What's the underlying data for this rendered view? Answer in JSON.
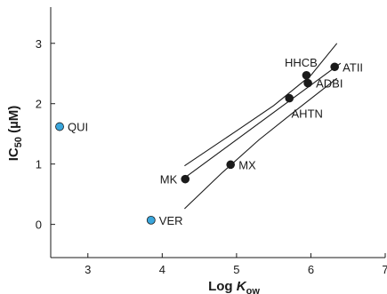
{
  "chart_data": {
    "type": "scatter",
    "xlim": [
      2.5,
      7
    ],
    "ylim": [
      -0.55,
      3.6
    ],
    "x_ticks": [
      "3",
      "4",
      "5",
      "6",
      "7"
    ],
    "y_ticks": [
      "0",
      "1",
      "2",
      "3"
    ],
    "xlabel": {
      "main": "Log ",
      "italic": "K",
      "sub": "ow"
    },
    "ylabel": {
      "main": "IC",
      "sub": "50",
      "unit": " (µM)"
    },
    "colors": {
      "point_black": "#1a1a1a",
      "point_blue": "#3aa6dc",
      "line": "#1a1a1a"
    },
    "points": [
      {
        "name": "QUI",
        "x": 2.62,
        "y": 1.62,
        "color": "point_blue",
        "label_side": "right"
      },
      {
        "name": "VER",
        "x": 3.85,
        "y": 0.07,
        "color": "point_blue",
        "label_side": "right"
      },
      {
        "name": "MK",
        "x": 4.31,
        "y": 0.75,
        "color": "point_black",
        "label_side": "left"
      },
      {
        "name": "MX",
        "x": 4.92,
        "y": 0.99,
        "color": "point_black",
        "label_side": "right"
      },
      {
        "name": "AHTN",
        "x": 5.71,
        "y": 2.09,
        "color": "point_black",
        "label_side": "below"
      },
      {
        "name": "HHCB",
        "x": 5.94,
        "y": 2.47,
        "color": "point_black",
        "label_side": "above"
      },
      {
        "name": "ADBI",
        "x": 5.96,
        "y": 2.34,
        "color": "point_black",
        "label_side": "right"
      },
      {
        "name": "ATII",
        "x": 6.32,
        "y": 2.61,
        "color": "point_black",
        "label_side": "right"
      }
    ],
    "regression": {
      "x": [
        4.3,
        6.4
      ],
      "y": [
        0.77,
        2.67
      ]
    },
    "confidence_upper": {
      "x": [
        4.3,
        5.0,
        5.5,
        6.0,
        6.35
      ],
      "y": [
        0.97,
        1.55,
        1.97,
        2.47,
        3.0
      ]
    },
    "confidence_lower": {
      "x": [
        4.3,
        4.8,
        5.3,
        5.8,
        6.35
      ],
      "y": [
        0.26,
        0.85,
        1.4,
        1.89,
        2.42
      ]
    }
  }
}
